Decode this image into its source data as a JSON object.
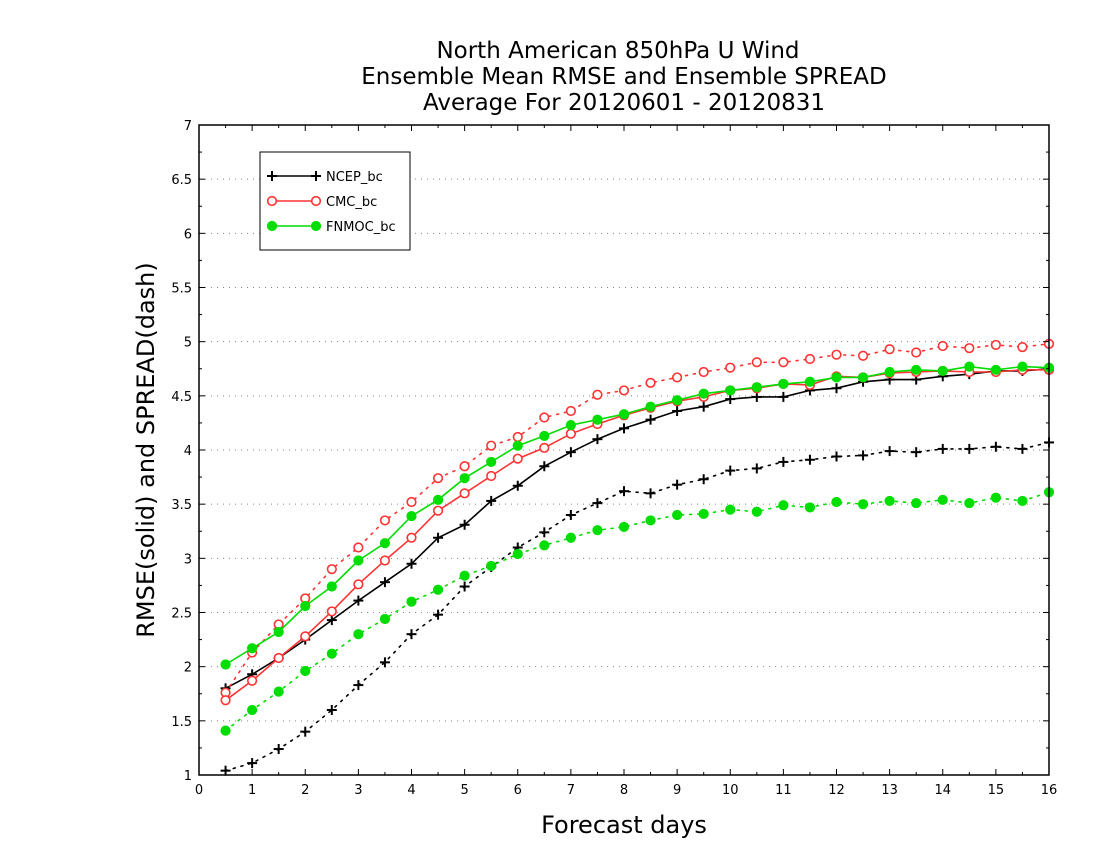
{
  "chart_data": {
    "type": "line",
    "title_lines": [
      "North American 850hPa U Wind",
      "Ensemble Mean RMSE and Ensemble SPREAD",
      "Average For 20120601 - 20120831"
    ],
    "xlabel": "Forecast days",
    "ylabel": "RMSE(solid) and SPREAD(dash)",
    "xlim": [
      0,
      16
    ],
    "ylim": [
      1,
      7
    ],
    "x_ticks": [
      "0",
      "1",
      "2",
      "3",
      "4",
      "5",
      "6",
      "7",
      "8",
      "9",
      "10",
      "11",
      "12",
      "13",
      "14",
      "15",
      "16"
    ],
    "y_ticks": [
      "1",
      "1.5",
      "2",
      "2.5",
      "3",
      "3.5",
      "4",
      "4.5",
      "5",
      "5.5",
      "6",
      "6.5",
      "7"
    ],
    "grid": "horizontal dotted",
    "legend_position": "top-left",
    "x": [
      0.5,
      1,
      1.5,
      2,
      2.5,
      3,
      3.5,
      4,
      4.5,
      5,
      5.5,
      6,
      6.5,
      7,
      7.5,
      8,
      8.5,
      9,
      9.5,
      10,
      10.5,
      11,
      11.5,
      12,
      12.5,
      13,
      13.5,
      14,
      14.5,
      15,
      15.5,
      16
    ],
    "series": [
      {
        "name": "NCEP_bc",
        "color": "#000000",
        "marker": "plus",
        "rmse": [
          1.8,
          1.93,
          2.08,
          2.25,
          2.43,
          2.61,
          2.78,
          2.95,
          3.19,
          3.31,
          3.53,
          3.67,
          3.85,
          3.98,
          4.1,
          4.2,
          4.28,
          4.36,
          4.4,
          4.47,
          4.49,
          4.49,
          4.55,
          4.57,
          4.63,
          4.65,
          4.65,
          4.68,
          4.7,
          4.73,
          4.73,
          4.75
        ],
        "spread": [
          1.04,
          1.11,
          1.24,
          1.4,
          1.6,
          1.83,
          2.04,
          2.3,
          2.48,
          2.74,
          2.92,
          3.1,
          3.24,
          3.4,
          3.51,
          3.62,
          3.6,
          3.68,
          3.73,
          3.81,
          3.83,
          3.89,
          3.91,
          3.94,
          3.95,
          3.99,
          3.98,
          4.01,
          4.01,
          4.03,
          4.01,
          4.07
        ]
      },
      {
        "name": "CMC_bc",
        "color": "#ff3333",
        "marker": "open-circle",
        "rmse": [
          1.69,
          1.87,
          2.08,
          2.28,
          2.51,
          2.76,
          2.98,
          3.19,
          3.44,
          3.6,
          3.76,
          3.92,
          4.02,
          4.15,
          4.24,
          4.32,
          4.39,
          4.45,
          4.49,
          4.55,
          4.57,
          4.61,
          4.6,
          4.68,
          4.67,
          4.71,
          4.72,
          4.73,
          4.72,
          4.72,
          4.74,
          4.74
        ],
        "spread": [
          1.76,
          2.13,
          2.39,
          2.63,
          2.9,
          3.1,
          3.35,
          3.52,
          3.74,
          3.85,
          4.04,
          4.12,
          4.3,
          4.36,
          4.51,
          4.55,
          4.62,
          4.67,
          4.72,
          4.76,
          4.81,
          4.81,
          4.84,
          4.88,
          4.87,
          4.93,
          4.9,
          4.96,
          4.94,
          4.97,
          4.95,
          4.98
        ]
      },
      {
        "name": "FNMOC_bc",
        "color": "#00dd00",
        "marker": "filled-circle",
        "rmse": [
          2.02,
          2.17,
          2.32,
          2.56,
          2.74,
          2.98,
          3.14,
          3.39,
          3.54,
          3.74,
          3.89,
          4.04,
          4.13,
          4.23,
          4.28,
          4.33,
          4.4,
          4.46,
          4.52,
          4.55,
          4.58,
          4.61,
          4.63,
          4.67,
          4.67,
          4.72,
          4.74,
          4.73,
          4.77,
          4.74,
          4.77,
          4.76
        ],
        "spread": [
          1.41,
          1.6,
          1.77,
          1.96,
          2.12,
          2.3,
          2.44,
          2.6,
          2.71,
          2.84,
          2.93,
          3.04,
          3.12,
          3.19,
          3.26,
          3.29,
          3.35,
          3.4,
          3.41,
          3.45,
          3.43,
          3.49,
          3.47,
          3.52,
          3.5,
          3.53,
          3.51,
          3.54,
          3.51,
          3.56,
          3.53,
          3.61
        ]
      }
    ]
  }
}
